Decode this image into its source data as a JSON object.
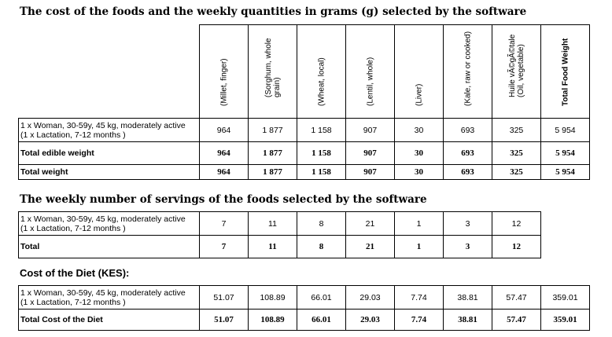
{
  "section1": {
    "title": "The cost of the foods and the weekly quantities in grams (g) selected by the software",
    "columns": [
      [
        "(Millet, finger)"
      ],
      [
        "(Sorghum, whole",
        "grain)"
      ],
      [
        "(Wheat, local)"
      ],
      [
        "(Lentil, whole)"
      ],
      [
        "(Liver)"
      ],
      [
        "(Kale, raw or cooked)"
      ],
      [
        "Huile vÃ©gÃ©tale",
        "(Oil, vegetable)"
      ]
    ],
    "total_col": "Total Food Weight",
    "rows": [
      {
        "label": [
          "1 x Woman, 30-59y, 45 kg, moderately active",
          "(1 x Lactation, 7-12 months )"
        ],
        "values": [
          "964",
          "1 877",
          "1 158",
          "907",
          "30",
          "693",
          "325",
          "5 954"
        ]
      },
      {
        "label": [
          "Total edible weight"
        ],
        "values": [
          "964",
          "1 877",
          "1 158",
          "907",
          "30",
          "693",
          "325",
          "5 954"
        ]
      },
      {
        "label": [
          "Total weight"
        ],
        "values": [
          "964",
          "1 877",
          "1 158",
          "907",
          "30",
          "693",
          "325",
          "5 954"
        ]
      }
    ]
  },
  "section2": {
    "title": "The weekly number of servings of the foods selected by the software",
    "rows": [
      {
        "label": [
          "1 x Woman, 30-59y, 45 kg, moderately active",
          "(1 x Lactation, 7-12 months )"
        ],
        "values": [
          "7",
          "11",
          "8",
          "21",
          "1",
          "3",
          "12"
        ]
      },
      {
        "label": [
          "Total"
        ],
        "values": [
          "7",
          "11",
          "8",
          "21",
          "1",
          "3",
          "12"
        ]
      }
    ]
  },
  "section3": {
    "title": "Cost of the Diet (KES):",
    "rows": [
      {
        "label": [
          "1 x Woman, 30-59y, 45 kg, moderately active",
          "(1 x Lactation, 7-12 months )"
        ],
        "values": [
          "51.07",
          "108.89",
          "66.01",
          "29.03",
          "7.74",
          "38.81",
          "57.47",
          "359.01"
        ]
      },
      {
        "label": [
          "Total Cost of the Diet"
        ],
        "values": [
          "51.07",
          "108.89",
          "66.01",
          "29.03",
          "7.74",
          "38.81",
          "57.47",
          "359.01"
        ]
      }
    ]
  }
}
